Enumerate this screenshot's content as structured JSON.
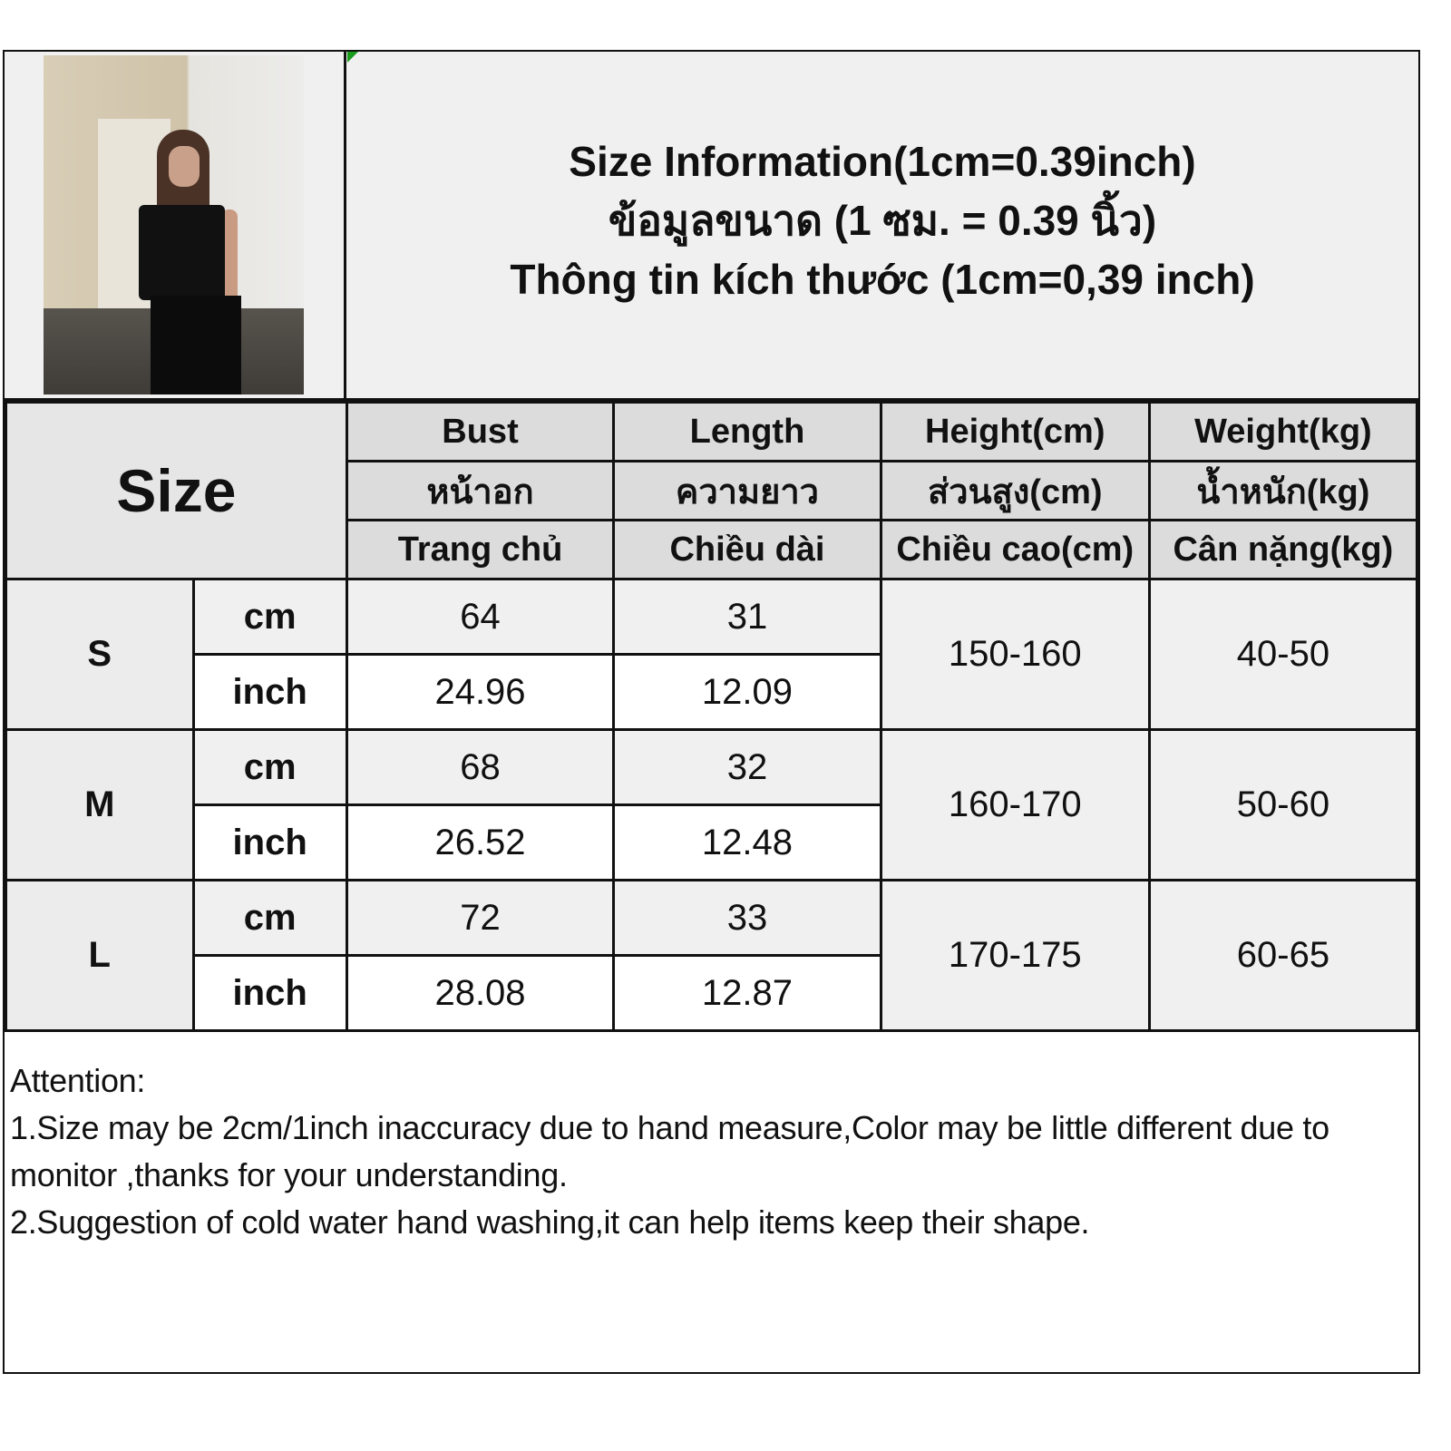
{
  "title_lines": [
    "Size Information(1cm=0.39inch)",
    "ข้อมูลขนาด (1 ซม. = 0.39 นิ้ว)",
    "Thông tin kích thước (1cm=0,39 inch)"
  ],
  "size_header": "Size",
  "columns": [
    {
      "en": "Bust",
      "th": "หน้าอก",
      "vi": "Trang chủ"
    },
    {
      "en": "Length",
      "th": "ความยาว",
      "vi": "Chiều dài"
    },
    {
      "en": "Height(cm)",
      "th": "ส่วนสูง(cm)",
      "vi": "Chiều cao(cm)"
    },
    {
      "en": "Weight(kg)",
      "th": "น้ำหนัก(kg)",
      "vi": "Cân nặng(kg)"
    }
  ],
  "units": {
    "cm": "cm",
    "inch": "inch"
  },
  "rows": [
    {
      "size": "S",
      "bust_cm": "64",
      "length_cm": "31",
      "bust_inch": "24.96",
      "length_inch": "12.09",
      "height": "150-160",
      "weight": "40-50"
    },
    {
      "size": "M",
      "bust_cm": "68",
      "length_cm": "32",
      "bust_inch": "26.52",
      "length_inch": "12.48",
      "height": "160-170",
      "weight": "50-60"
    },
    {
      "size": "L",
      "bust_cm": "72",
      "length_cm": "33",
      "bust_inch": "28.08",
      "length_inch": "12.87",
      "height": "170-175",
      "weight": "60-65"
    }
  ],
  "attention": {
    "heading": "Attention:",
    "notes": [
      "1.Size may be 2cm/1inch inaccuracy due to hand measure,Color may be little different due to monitor ,thanks for your understanding.",
      "2.Suggestion of cold water hand washing,it can help items keep their shape."
    ]
  },
  "colors": {
    "header_bg": "#dcdcdc",
    "cell_bg": "#f0f0f0",
    "border": "#111111"
  }
}
